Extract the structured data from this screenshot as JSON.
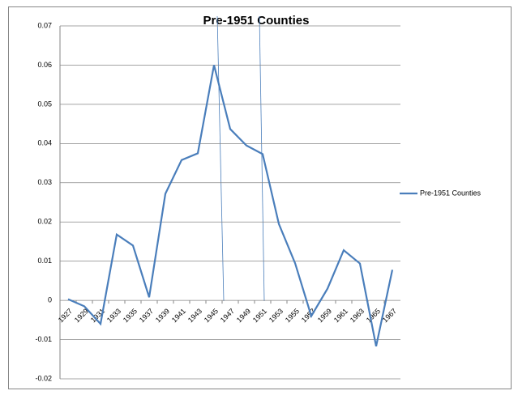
{
  "chart_data": {
    "type": "line",
    "title": "Pre-1951 Counties",
    "categories": [
      "1927",
      "1929",
      "1931",
      "1933",
      "1935",
      "1937",
      "1939",
      "1941",
      "1943",
      "1945",
      "1947",
      "1949",
      "1951",
      "1953",
      "1955",
      "1957",
      "1959",
      "1961",
      "1963",
      "1965",
      "1967"
    ],
    "series": [
      {
        "name": "Pre-1951 Counties",
        "color": "#4a7ebb",
        "values": [
          0.0003,
          -0.0015,
          -0.006,
          0.0168,
          0.014,
          0.0008,
          0.0272,
          0.0358,
          0.0375,
          0.06,
          0.0437,
          0.0395,
          0.0373,
          0.0195,
          0.0095,
          -0.004,
          0.003,
          0.0128,
          0.0094,
          -0.0117,
          0.0078
        ]
      }
    ],
    "ylim": [
      -0.02,
      0.07
    ],
    "yticks": [
      -0.02,
      -0.01,
      0,
      0.01,
      0.02,
      0.03,
      0.04,
      0.05,
      0.06,
      0.07
    ],
    "grid": true,
    "legend": "right"
  }
}
